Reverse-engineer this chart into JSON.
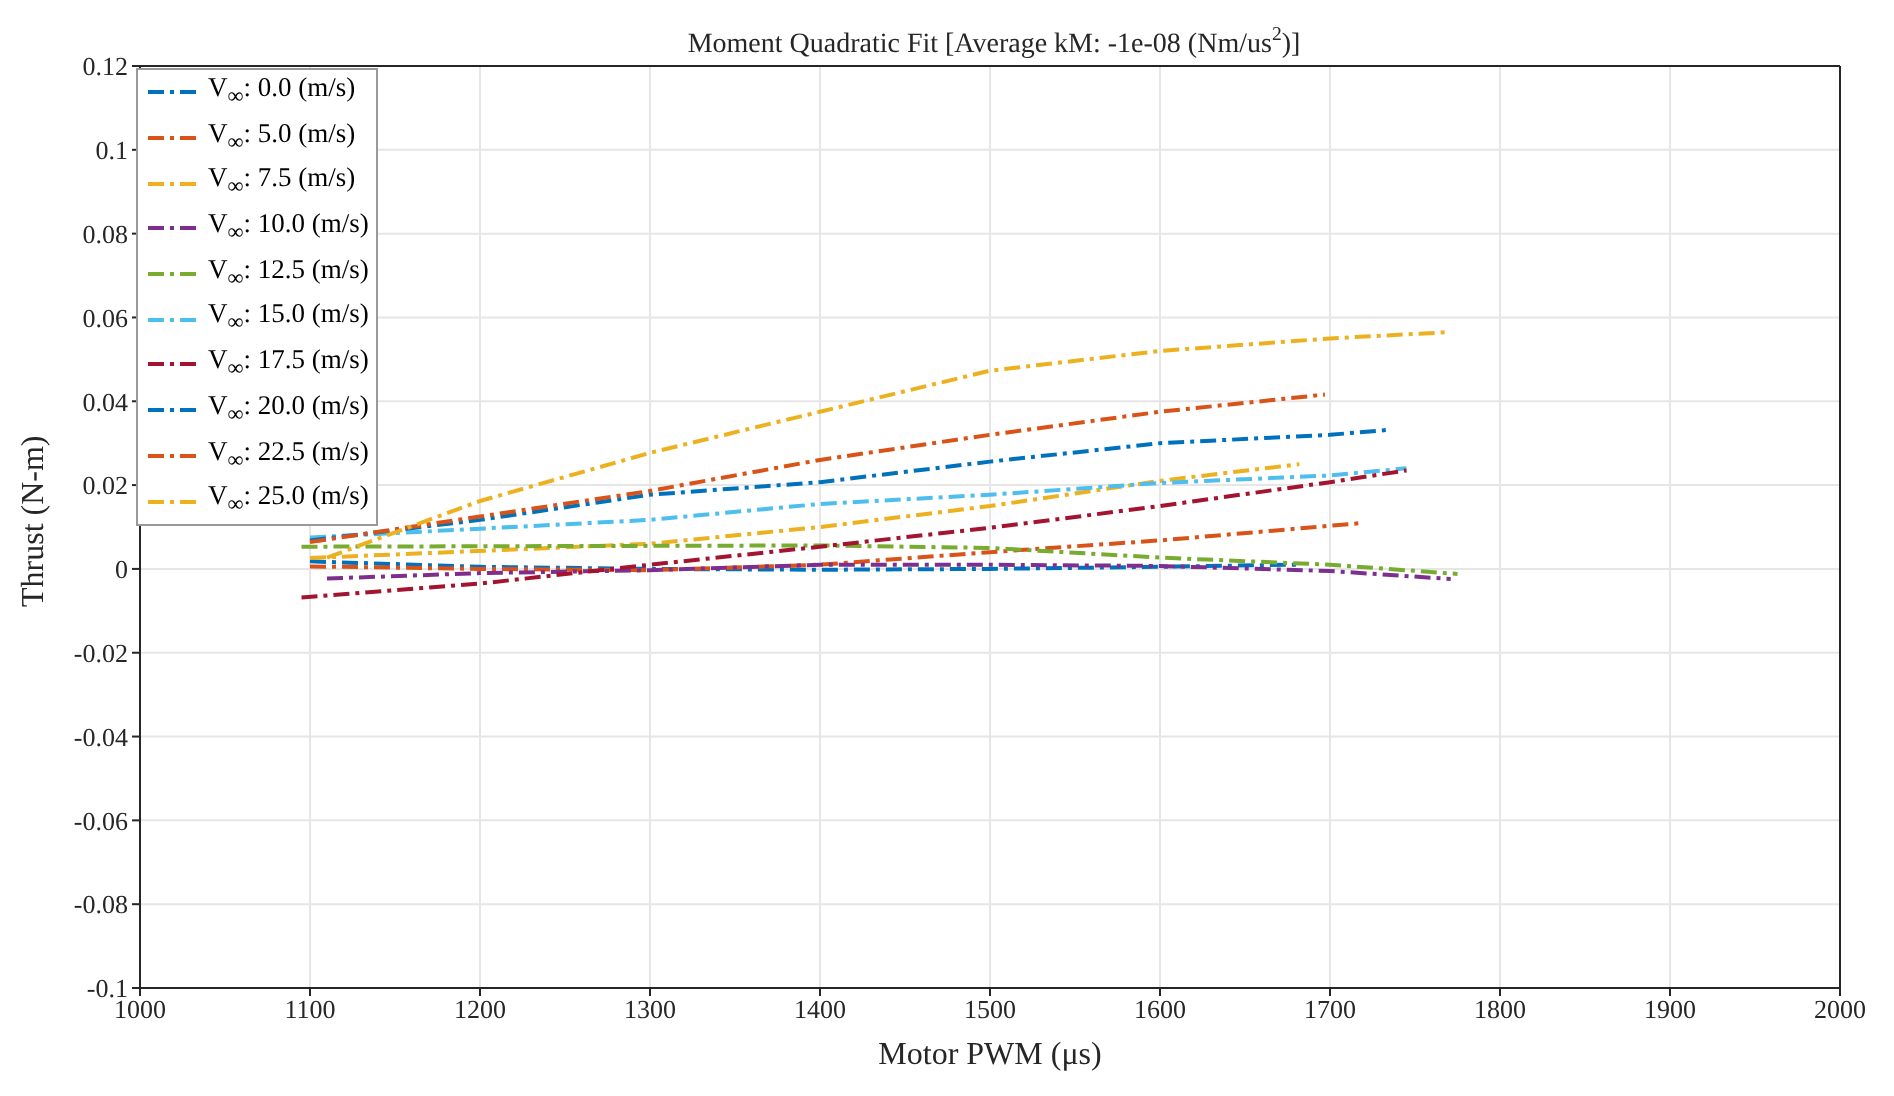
{
  "chart_data": {
    "type": "line",
    "title": "Moment Quadratic Fit [Average kM: -1e-08 (Nm/us$^{2}$)]",
    "xlabel": "Motor PWM (μs)",
    "ylabel": "Thrust (N-m)",
    "xlim": [
      1000,
      2000
    ],
    "xticks": [
      1000,
      1100,
      1200,
      1300,
      1400,
      1500,
      1600,
      1700,
      1800,
      1900,
      2000
    ],
    "ylim": [
      -0.1,
      0.12
    ],
    "yticks": [
      -0.1,
      -0.08,
      -0.06,
      -0.04,
      -0.02,
      0,
      0.02,
      0.04,
      0.06,
      0.08,
      0.1,
      0.12
    ],
    "grid": true,
    "legend": "top left",
    "line_style": "dashed",
    "marker": "none",
    "series": [
      {
        "name": "V$_{∞}$: 0.0 (m/s)",
        "color": "#0072bd",
        "x": [
          1100,
          1200,
          1300,
          1400,
          1500,
          1600,
          1680
        ],
        "values": [
          0.0018,
          0.0005,
          0.0,
          -0.0002,
          0.0,
          0.0005,
          0.001
        ]
      },
      {
        "name": "V$_{∞}$: 5.0 (m/s)",
        "color": "#d95319",
        "x": [
          1100,
          1200,
          1300,
          1400,
          1500,
          1600,
          1720
        ],
        "values": [
          0.0006,
          0.0,
          -0.0003,
          0.001,
          0.004,
          0.0068,
          0.011
        ]
      },
      {
        "name": "V$_{∞}$: 7.5 (m/s)",
        "color": "#edb120",
        "x": [
          1100,
          1300,
          1400,
          1500,
          1600,
          1682
        ],
        "values": [
          0.0026,
          0.006,
          0.01,
          0.015,
          0.021,
          0.025
        ]
      },
      {
        "name": "V$_{∞}$: 10.0 (m/s)",
        "color": "#7e2f8e",
        "x": [
          1110,
          1200,
          1300,
          1400,
          1500,
          1600,
          1700,
          1771
        ],
        "values": [
          -0.0023,
          -0.001,
          -0.0003,
          0.001,
          0.001,
          0.0007,
          -0.0005,
          -0.0024
        ]
      },
      {
        "name": "V$_{∞}$: 12.5 (m/s)",
        "color": "#77ac30",
        "x": [
          1095,
          1300,
          1400,
          1500,
          1600,
          1700,
          1775
        ],
        "values": [
          0.0053,
          0.0055,
          0.0056,
          0.005,
          0.0027,
          0.001,
          -0.0012
        ]
      },
      {
        "name": "V$_{∞}$: 15.0 (m/s)",
        "color": "#4dbeee",
        "x": [
          1100,
          1300,
          1400,
          1500,
          1600,
          1700,
          1745
        ],
        "values": [
          0.0075,
          0.0117,
          0.0155,
          0.0177,
          0.0205,
          0.0223,
          0.024
        ]
      },
      {
        "name": "V$_{∞}$: 17.5 (m/s)",
        "color": "#a2142f",
        "x": [
          1095,
          1200,
          1300,
          1400,
          1500,
          1600,
          1700,
          1745
        ],
        "values": [
          -0.0068,
          -0.0035,
          0.001,
          0.0053,
          0.0098,
          0.015,
          0.0207,
          0.0235
        ]
      },
      {
        "name": "V$_{∞}$: 20.0 (m/s)",
        "color": "#0072bd",
        "x": [
          1100,
          1200,
          1300,
          1400,
          1500,
          1600,
          1700,
          1735
        ],
        "values": [
          0.0068,
          0.0117,
          0.0177,
          0.0207,
          0.0256,
          0.03,
          0.032,
          0.0332
        ]
      },
      {
        "name": "V$_{∞}$: 22.5 (m/s)",
        "color": "#d95319",
        "x": [
          1100,
          1200,
          1300,
          1400,
          1500,
          1600,
          1697
        ],
        "values": [
          0.0064,
          0.0125,
          0.0186,
          0.026,
          0.032,
          0.0375,
          0.0416
        ]
      },
      {
        "name": "V$_{∞}$: 25.0 (m/s)",
        "color": "#edb120",
        "x": [
          1110,
          1200,
          1300,
          1400,
          1500,
          1600,
          1700,
          1770
        ],
        "values": [
          0.0027,
          0.0162,
          0.0277,
          0.0375,
          0.0473,
          0.052,
          0.055,
          0.0565
        ]
      }
    ]
  }
}
